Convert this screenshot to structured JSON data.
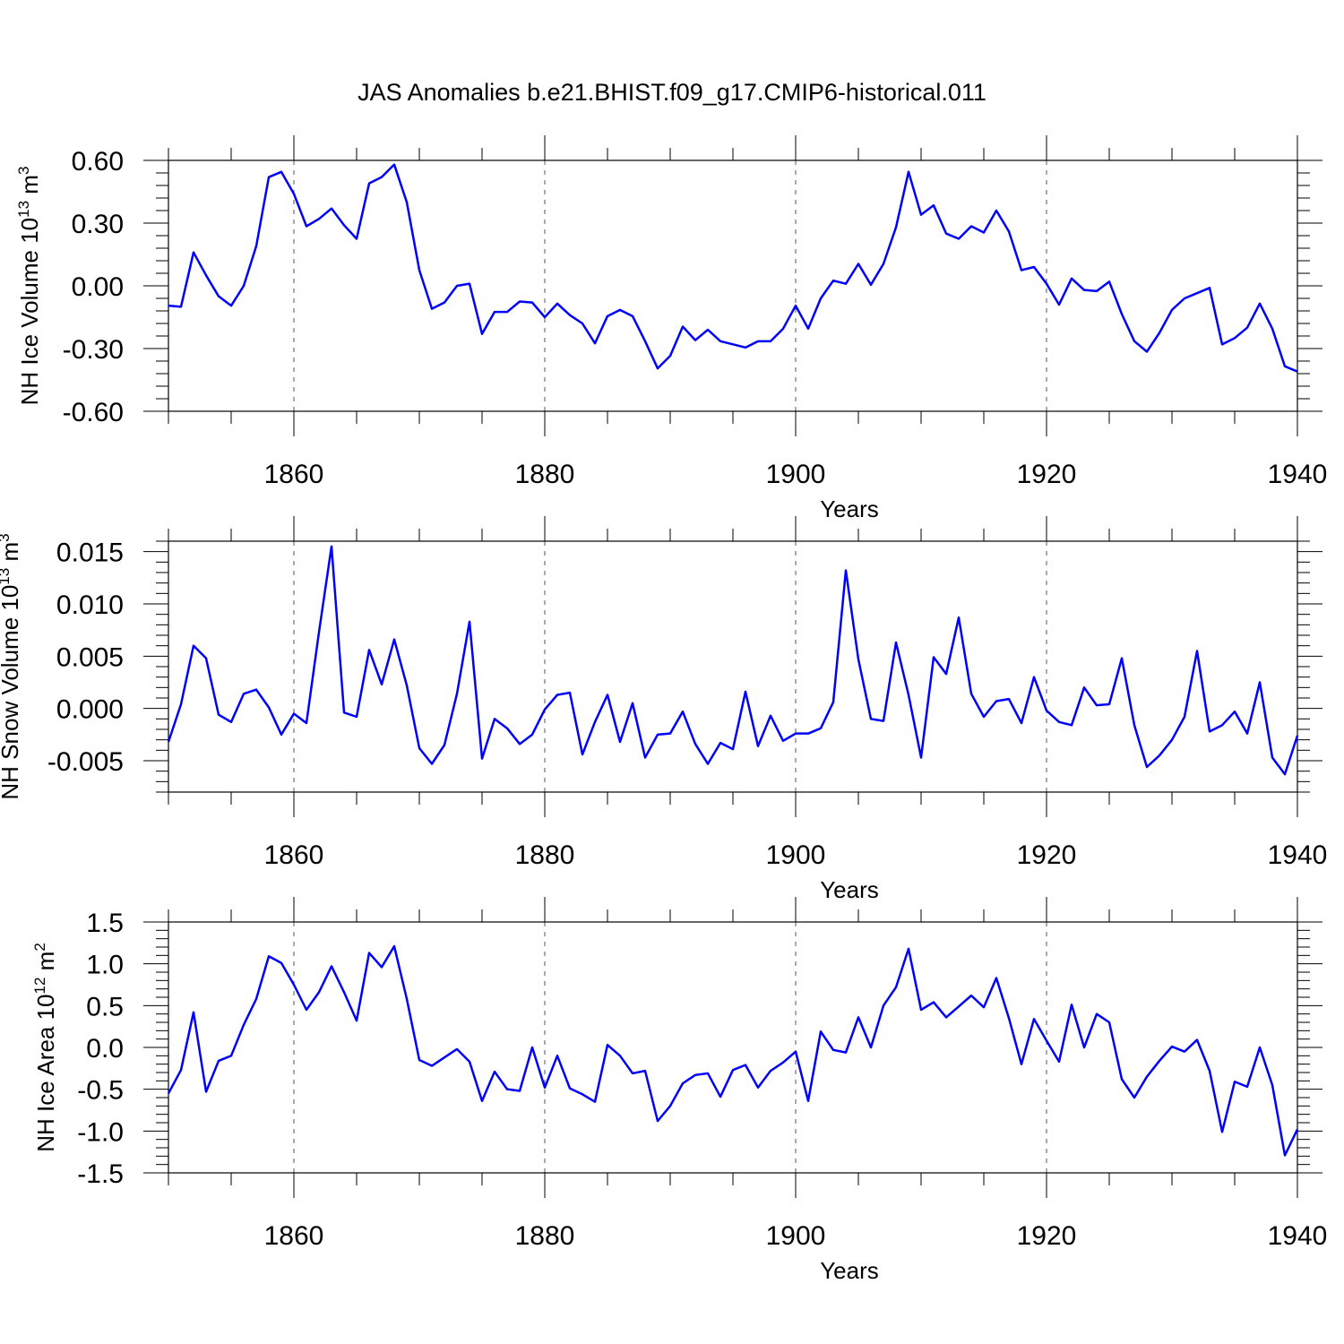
{
  "title": "JAS Anomalies b.e21.BHIST.f09_g17.CMIP6-historical.011",
  "colors": {
    "line": "#0000ff",
    "axis": "#000000",
    "grid": "#555555"
  },
  "chart_data": [
    {
      "type": "line",
      "ylabel": "NH Ice Volume 10",
      "ylabel_sup": "13",
      "ylabel_unit": " m",
      "ylabel_unit_sup": "3",
      "xlabel": "Years",
      "xlim": [
        1850,
        1940
      ],
      "ylim": [
        -0.6,
        0.6
      ],
      "yticks": [
        -0.6,
        -0.3,
        0.0,
        0.3,
        0.6
      ],
      "ytick_labels": [
        "-0.60",
        "-0.30",
        "0.00",
        "0.30",
        "0.60"
      ],
      "xticks": [
        1860,
        1880,
        1900,
        1920,
        1940
      ],
      "xtick_labels": [
        "1860",
        "1880",
        "1900",
        "1920",
        "1940"
      ],
      "grid_x": [
        1860,
        1880,
        1900,
        1920
      ],
      "grid": "dashed vertical at major x ticks",
      "x_start": 1850,
      "values": [
        -0.095,
        -0.1,
        0.16,
        0.05,
        -0.05,
        -0.095,
        0.0,
        0.19,
        0.52,
        0.545,
        0.44,
        0.285,
        0.32,
        0.37,
        0.29,
        0.225,
        0.49,
        0.52,
        0.58,
        0.4,
        0.075,
        -0.11,
        -0.08,
        0.0,
        0.01,
        -0.23,
        -0.125,
        -0.125,
        -0.075,
        -0.08,
        -0.15,
        -0.085,
        -0.14,
        -0.18,
        -0.275,
        -0.145,
        -0.115,
        -0.145,
        -0.265,
        -0.395,
        -0.335,
        -0.195,
        -0.26,
        -0.21,
        -0.265,
        -0.28,
        -0.295,
        -0.265,
        -0.265,
        -0.205,
        -0.095,
        -0.205,
        -0.06,
        0.025,
        0.01,
        0.105,
        0.005,
        0.105,
        0.28,
        0.545,
        0.34,
        0.385,
        0.25,
        0.225,
        0.285,
        0.255,
        0.36,
        0.26,
        0.075,
        0.09,
        0.01,
        -0.09,
        0.035,
        -0.02,
        -0.025,
        0.02,
        -0.135,
        -0.265,
        -0.315,
        -0.225,
        -0.115,
        -0.06,
        -0.035,
        -0.01,
        -0.28,
        -0.25,
        -0.2,
        -0.085,
        -0.205,
        -0.385,
        -0.41
      ]
    },
    {
      "type": "line",
      "ylabel": "NH Snow Volume 10",
      "ylabel_sup": "13",
      "ylabel_unit": " m",
      "ylabel_unit_sup": "3",
      "xlabel": "Years",
      "xlim": [
        1850,
        1940
      ],
      "ylim": [
        -0.008,
        0.016
      ],
      "yticks": [
        -0.005,
        0.0,
        0.005,
        0.01,
        0.015
      ],
      "ytick_labels": [
        "-0.005",
        "0.000",
        "0.005",
        "0.010",
        "0.015"
      ],
      "xticks": [
        1860,
        1880,
        1900,
        1920,
        1940
      ],
      "xtick_labels": [
        "1860",
        "1880",
        "1900",
        "1920",
        "1940"
      ],
      "grid_x": [
        1860,
        1880,
        1900,
        1920
      ],
      "grid": "dashed vertical at major x ticks",
      "x_start": 1850,
      "values": [
        -0.0032,
        0.0004,
        0.006,
        0.0048,
        -0.0006,
        -0.0013,
        0.0014,
        0.0018,
        0.0001,
        -0.0025,
        -0.0005,
        -0.0014,
        0.0073,
        0.0155,
        -0.0004,
        -0.0008,
        0.0056,
        0.0023,
        0.0066,
        0.0022,
        -0.0038,
        -0.0053,
        -0.0035,
        0.0014,
        0.0083,
        -0.0048,
        -0.001,
        -0.0019,
        -0.0034,
        -0.0025,
        -0.0001,
        0.0013,
        0.0015,
        -0.0044,
        -0.0013,
        0.0013,
        -0.0032,
        0.0005,
        -0.0047,
        -0.0025,
        -0.0024,
        -0.0003,
        -0.0034,
        -0.0053,
        -0.0033,
        -0.0039,
        0.0016,
        -0.0036,
        -0.0007,
        -0.0031,
        -0.0024,
        -0.0024,
        -0.0019,
        0.0006,
        0.0132,
        0.0047,
        -0.001,
        -0.0012,
        0.0063,
        0.0013,
        -0.0047,
        0.0049,
        0.0033,
        0.0087,
        0.0014,
        -0.0008,
        0.0007,
        0.0009,
        -0.0014,
        0.003,
        -0.0002,
        -0.0013,
        -0.0016,
        0.002,
        0.0003,
        0.0004,
        0.0048,
        -0.0016,
        -0.0056,
        -0.0045,
        -0.003,
        -0.0008,
        0.0055,
        -0.0022,
        -0.0016,
        -0.0003,
        -0.0024,
        0.0025,
        -0.0047,
        -0.0063,
        -0.0026
      ]
    },
    {
      "type": "line",
      "ylabel": "NH Ice Area 10",
      "ylabel_sup": "12",
      "ylabel_unit": " m",
      "ylabel_unit_sup": "2",
      "xlabel": "Years",
      "xlim": [
        1850,
        1940
      ],
      "ylim": [
        -1.5,
        1.5
      ],
      "yticks": [
        -1.5,
        -1.0,
        -0.5,
        0.0,
        0.5,
        1.0,
        1.5
      ],
      "ytick_labels": [
        "-1.5",
        "-1.0",
        "-0.5",
        "0.0",
        "0.5",
        "1.0",
        "1.5"
      ],
      "xticks": [
        1860,
        1880,
        1900,
        1920,
        1940
      ],
      "xtick_labels": [
        "1860",
        "1880",
        "1900",
        "1920",
        "1940"
      ],
      "grid_x": [
        1860,
        1880,
        1900,
        1920
      ],
      "grid": "dashed vertical at major x ticks",
      "x_start": 1850,
      "values": [
        -0.55,
        -0.27,
        0.42,
        -0.53,
        -0.16,
        -0.1,
        0.27,
        0.58,
        1.09,
        1.01,
        0.75,
        0.45,
        0.66,
        0.97,
        0.66,
        0.32,
        1.13,
        0.96,
        1.21,
        0.58,
        -0.15,
        -0.22,
        -0.12,
        -0.02,
        -0.17,
        -0.64,
        -0.29,
        -0.5,
        -0.52,
        0.0,
        -0.48,
        -0.1,
        -0.49,
        -0.56,
        -0.65,
        0.03,
        -0.1,
        -0.31,
        -0.28,
        -0.88,
        -0.7,
        -0.43,
        -0.33,
        -0.31,
        -0.59,
        -0.27,
        -0.21,
        -0.48,
        -0.28,
        -0.18,
        -0.05,
        -0.64,
        0.19,
        -0.03,
        -0.06,
        0.36,
        0.0,
        0.5,
        0.72,
        1.18,
        0.45,
        0.54,
        0.36,
        0.49,
        0.62,
        0.48,
        0.83,
        0.35,
        -0.2,
        0.34,
        0.08,
        -0.17,
        0.51,
        0.0,
        0.4,
        0.3,
        -0.38,
        -0.6,
        -0.35,
        -0.16,
        0.01,
        -0.05,
        0.09,
        -0.28,
        -1.01,
        -0.41,
        -0.47,
        0.0,
        -0.45,
        -1.29,
        -0.98
      ]
    }
  ]
}
